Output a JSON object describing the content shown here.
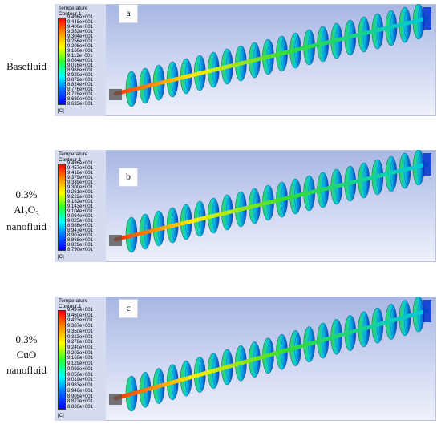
{
  "panels": [
    {
      "letter": "a",
      "row_label": [
        "Basefluid"
      ],
      "legend_title": "Temperature",
      "legend_subtitle": "Contour 1",
      "unit": "[C]",
      "ticks": [
        "9.496e+001",
        "9.448e+001",
        "9.400e+001",
        "9.352e+001",
        "9.304e+001",
        "9.256e+001",
        "9.208e+001",
        "9.160e+001",
        "9.112e+001",
        "9.064e+001",
        "9.016e+001",
        "8.968e+001",
        "8.920e+001",
        "8.872e+001",
        "8.824e+001",
        "8.776e+001",
        "8.728e+001",
        "8.680e+001",
        "8.633e+001"
      ]
    },
    {
      "letter": "b",
      "row_label_parts": {
        "line1": "0.3%",
        "al": "Al",
        "sub1": "2",
        "o": "O",
        "sub2": "3",
        "line3": "nanofluid"
      },
      "legend_title": "Temperature",
      "legend_subtitle": "Contour 1",
      "unit": "[C]",
      "ticks": [
        "9.496e+001",
        "9.457e+001",
        "9.418e+001",
        "9.379e+001",
        "9.339e+001",
        "9.300e+001",
        "9.261e+001",
        "9.222e+001",
        "9.182e+001",
        "9.143e+001",
        "9.104e+001",
        "9.064e+001",
        "9.025e+001",
        "8.986e+001",
        "8.947e+001",
        "8.907e+001",
        "8.868e+001",
        "8.829e+001",
        "8.790e+001"
      ]
    },
    {
      "letter": "c",
      "row_label": [
        "0.3%",
        "CuO",
        "nanofluid"
      ],
      "legend_title": "Temperature",
      "legend_subtitle": "Contour 1",
      "unit": "[C]",
      "ticks": [
        "9.497e+001",
        "9.460e+001",
        "9.423e+001",
        "9.387e+001",
        "9.350e+001",
        "9.313e+001",
        "9.276e+001",
        "9.240e+001",
        "9.203e+001",
        "9.166e+001",
        "9.129e+001",
        "9.093e+001",
        "9.056e+001",
        "9.019e+001",
        "8.983e+001",
        "8.946e+001",
        "8.909e+001",
        "8.872e+001",
        "8.836e+001"
      ]
    }
  ],
  "colors": {
    "hot": "#ff3300",
    "warm": "#ffee00",
    "mid": "#33dd33",
    "cool": "#00c8e0",
    "cold": "#0033cc"
  }
}
